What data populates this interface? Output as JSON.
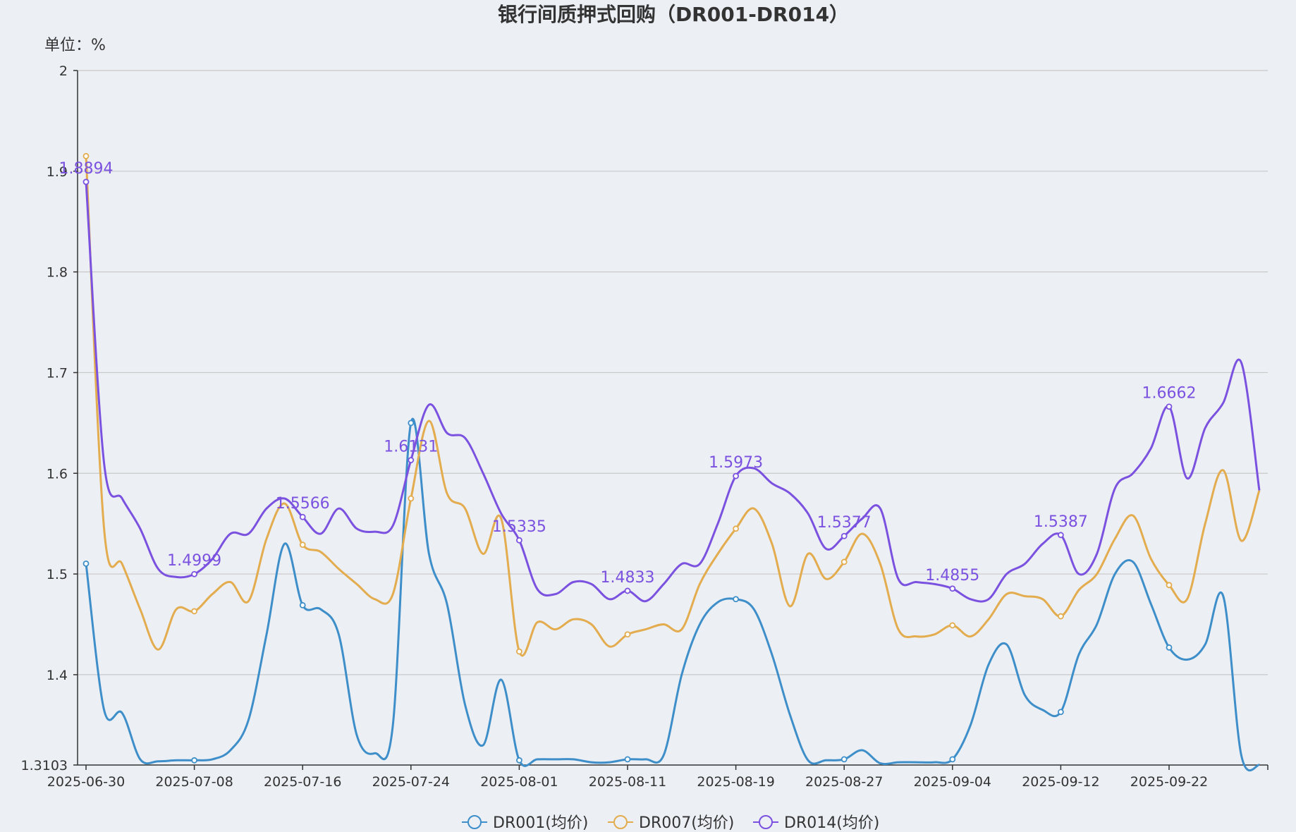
{
  "chart_data": {
    "type": "line",
    "title": "银行间质押式回购（DR001-DR014）",
    "unit_label": "单位：%",
    "ylim": [
      1.3103,
      2
    ],
    "y_ticks": [
      "1.3103",
      "1.4",
      "1.5",
      "1.6",
      "1.7",
      "1.8",
      "1.9",
      "2"
    ],
    "x_tick_labels": [
      "2025-06-30",
      "2025-07-08",
      "2025-07-16",
      "2025-07-24",
      "2025-08-01",
      "2025-08-11",
      "2025-08-19",
      "2025-08-27",
      "2025-09-04",
      "2025-09-12",
      "2025-09-22"
    ],
    "x_tick_index": [
      0,
      6,
      12,
      18,
      24,
      30,
      36,
      42,
      48,
      54,
      60
    ],
    "x_count": 66,
    "grid": true,
    "legend_position": "bottom",
    "series": [
      {
        "name": "DR001(均价)",
        "color": "#3d8ec9",
        "values": [
          1.5103,
          1.365,
          1.362,
          1.316,
          1.314,
          1.315,
          1.315,
          1.316,
          1.325,
          1.355,
          1.44,
          1.53,
          1.469,
          1.465,
          1.44,
          1.34,
          1.322,
          1.35,
          1.65,
          1.52,
          1.47,
          1.37,
          1.33,
          1.395,
          1.315,
          1.316,
          1.316,
          1.316,
          1.313,
          1.313,
          1.316,
          1.316,
          1.32,
          1.4,
          1.45,
          1.472,
          1.475,
          1.465,
          1.42,
          1.36,
          1.315,
          1.315,
          1.316,
          1.325,
          1.312,
          1.313,
          1.313,
          1.313,
          1.316,
          1.35,
          1.41,
          1.43,
          1.38,
          1.365,
          1.363,
          1.42,
          1.45,
          1.5,
          1.512,
          1.47,
          1.427,
          1.415,
          1.43,
          1.478,
          1.32,
          1.3103
        ],
        "labels": {}
      },
      {
        "name": "DR007(均价)",
        "color": "#e3ac4e",
        "values": [
          1.915,
          1.545,
          1.51,
          1.465,
          1.425,
          1.465,
          1.463,
          1.48,
          1.492,
          1.473,
          1.535,
          1.57,
          1.529,
          1.522,
          1.505,
          1.49,
          1.475,
          1.48,
          1.575,
          1.652,
          1.58,
          1.565,
          1.52,
          1.555,
          1.423,
          1.452,
          1.445,
          1.455,
          1.45,
          1.428,
          1.44,
          1.445,
          1.45,
          1.445,
          1.49,
          1.52,
          1.545,
          1.565,
          1.53,
          1.468,
          1.52,
          1.495,
          1.512,
          1.54,
          1.51,
          1.445,
          1.438,
          1.44,
          1.449,
          1.438,
          1.455,
          1.48,
          1.478,
          1.475,
          1.458,
          1.484,
          1.5,
          1.535,
          1.558,
          1.515,
          1.489,
          1.475,
          1.55,
          1.603,
          1.533,
          1.583
        ],
        "labels": {}
      },
      {
        "name": "DR014(均价)",
        "color": "#7b52e0",
        "values": [
          1.8894,
          1.61,
          1.575,
          1.545,
          1.505,
          1.497,
          1.4999,
          1.515,
          1.54,
          1.54,
          1.565,
          1.575,
          1.5566,
          1.54,
          1.565,
          1.545,
          1.542,
          1.548,
          1.6131,
          1.668,
          1.64,
          1.635,
          1.6,
          1.56,
          1.5335,
          1.485,
          1.48,
          1.492,
          1.49,
          1.475,
          1.4833,
          1.473,
          1.49,
          1.51,
          1.51,
          1.55,
          1.5973,
          1.605,
          1.59,
          1.58,
          1.56,
          1.525,
          1.5377,
          1.555,
          1.565,
          1.495,
          1.492,
          1.49,
          1.4855,
          1.475,
          1.475,
          1.5,
          1.51,
          1.53,
          1.5387,
          1.5,
          1.52,
          1.585,
          1.6,
          1.625,
          1.6662,
          1.595,
          1.645,
          1.67,
          1.71,
          1.583
        ],
        "labels": {
          "0": "1.8894",
          "6": "1.4999",
          "12": "1.5566",
          "18": "1.6131",
          "24": "1.5335",
          "30": "1.4833",
          "36": "1.5973",
          "42": "1.5377",
          "48": "1.4855",
          "54": "1.5387",
          "60": "1.6662"
        }
      }
    ]
  }
}
